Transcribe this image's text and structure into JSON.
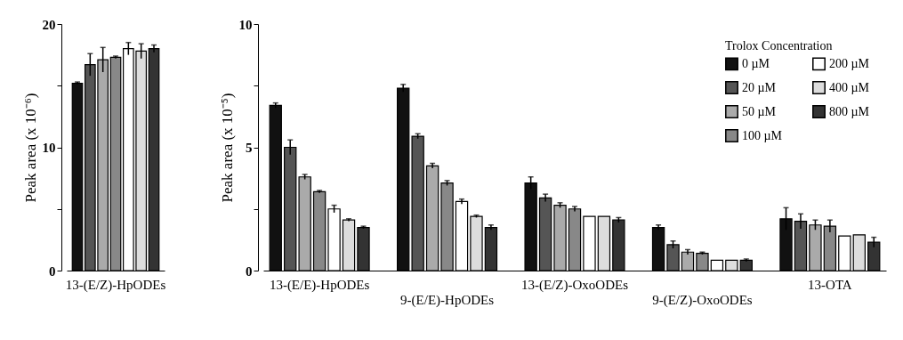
{
  "chart_data": [
    {
      "type": "bar",
      "ylabel": "Peak area (x 10⁻⁶)",
      "categories": [
        "13-(E/Z)-HpODEs"
      ],
      "ylim": [
        0,
        20
      ],
      "yticks": [
        0,
        {
          "value": 5,
          "label": null
        },
        10,
        {
          "value": 15,
          "label": null
        },
        20
      ],
      "grid": false,
      "legend": false,
      "series": [
        {
          "color": "#111111",
          "values": [
            15.2
          ],
          "errors": [
            0.1
          ]
        },
        {
          "color": "#555555",
          "values": [
            16.7
          ],
          "errors": [
            0.9
          ]
        },
        {
          "color": "#aaaaaa",
          "values": [
            17.1
          ],
          "errors": [
            1.0
          ]
        },
        {
          "color": "#888888",
          "values": [
            17.3
          ],
          "errors": [
            0.1
          ]
        },
        {
          "color": "#ffffff",
          "values": [
            18.0
          ],
          "errors": [
            0.5
          ]
        },
        {
          "color": "#dddddd",
          "values": [
            17.8
          ],
          "errors": [
            0.6
          ]
        },
        {
          "color": "#333333",
          "values": [
            18.0
          ],
          "errors": [
            0.3
          ]
        }
      ]
    },
    {
      "type": "bar",
      "ylabel": "Peak area (x 10⁻⁵)",
      "legend_title": "Trolox Concentration",
      "categories": [
        "13-(E/E)-HpODEs",
        "9-(E/E)-HpODEs",
        "13-(E/Z)-OxoODEs",
        "9-(E/Z)-OxoODEs",
        "13-OTA"
      ],
      "ylim": [
        0,
        10
      ],
      "yticks": [
        0,
        {
          "value": 2.5,
          "label": null
        },
        5,
        {
          "value": 7.5,
          "label": null
        },
        10
      ],
      "grid": false,
      "legend": "top right",
      "series": [
        {
          "name": "0 µM",
          "color": "#111111",
          "values": [
            6.7,
            7.4,
            3.55,
            1.75,
            2.1
          ],
          "errors": [
            0.1,
            0.15,
            0.25,
            0.1,
            0.45
          ]
        },
        {
          "name": "20 µM",
          "color": "#555555",
          "values": [
            5.0,
            5.45,
            2.95,
            1.05,
            2.0
          ],
          "errors": [
            0.3,
            0.1,
            0.15,
            0.15,
            0.3
          ]
        },
        {
          "name": "50 µM",
          "color": "#aaaaaa",
          "values": [
            3.8,
            4.25,
            2.65,
            0.75,
            1.85
          ],
          "errors": [
            0.1,
            0.1,
            0.1,
            0.1,
            0.2
          ]
        },
        {
          "name": "100 µM",
          "color": "#888888",
          "values": [
            3.2,
            3.55,
            2.5,
            0.7,
            1.8
          ],
          "errors": [
            0.05,
            0.1,
            0.1,
            0.05,
            0.25
          ]
        },
        {
          "name": "200 µM",
          "color": "#ffffff",
          "values": [
            2.5,
            2.8,
            2.2,
            0.42,
            1.4
          ],
          "errors": [
            0.15,
            0.1,
            null,
            null,
            null
          ]
        },
        {
          "name": "400 µM",
          "color": "#dddddd",
          "values": [
            2.05,
            2.2,
            2.2,
            0.42,
            1.45
          ],
          "errors": [
            0.05,
            0.05,
            null,
            null,
            null
          ]
        },
        {
          "name": "800 µM",
          "color": "#333333",
          "values": [
            1.75,
            1.75,
            2.05,
            0.42,
            1.15
          ],
          "errors": [
            0.05,
            0.1,
            0.1,
            0.05,
            0.2
          ]
        }
      ]
    }
  ]
}
